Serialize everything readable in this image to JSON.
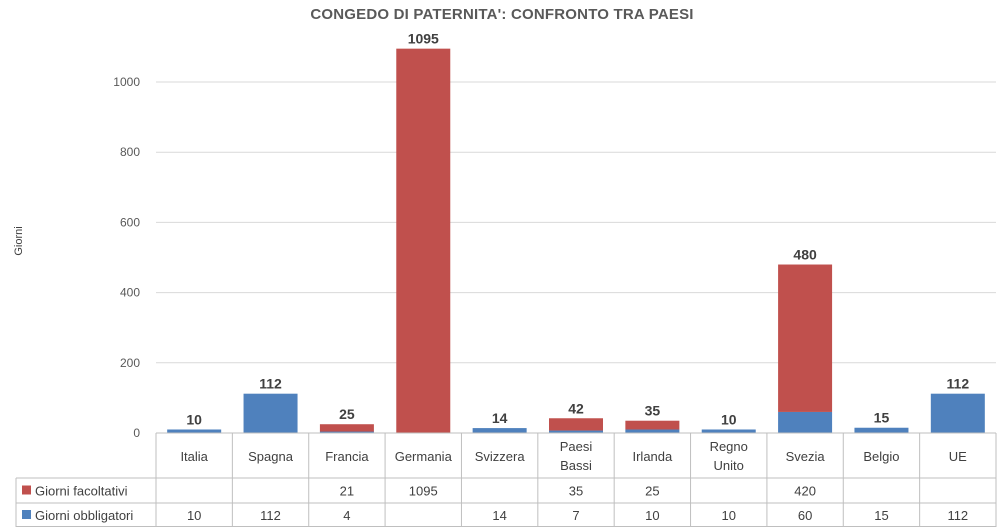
{
  "chart_data": {
    "type": "bar",
    "stacked": true,
    "title": "CONGEDO DI PATERNITA': CONFRONTO TRA PAESI",
    "ylabel": "Giorni",
    "ylim": [
      0,
      1100
    ],
    "yticks": [
      0,
      200,
      400,
      600,
      800,
      1000
    ],
    "grid": true,
    "legend_position": "data-table",
    "categories": [
      [
        "Italia"
      ],
      [
        "Spagna"
      ],
      [
        "Francia"
      ],
      [
        "Germania"
      ],
      [
        "Svizzera"
      ],
      [
        "Paesi",
        "Bassi"
      ],
      [
        "Irlanda"
      ],
      [
        "Regno",
        "Unito"
      ],
      [
        "Svezia"
      ],
      [
        "Belgio"
      ],
      [
        "UE"
      ]
    ],
    "series": [
      {
        "name": "Giorni obbligatori",
        "color": "#4f81bd",
        "values": [
          10,
          112,
          4,
          null,
          14,
          7,
          10,
          10,
          60,
          15,
          112
        ]
      },
      {
        "name": "Giorni facoltativi",
        "color": "#c0504d",
        "values": [
          null,
          null,
          21,
          1095,
          null,
          35,
          25,
          null,
          420,
          null,
          null
        ]
      }
    ],
    "totals": [
      10,
      112,
      25,
      1095,
      14,
      42,
      35,
      10,
      480,
      15,
      112
    ]
  }
}
